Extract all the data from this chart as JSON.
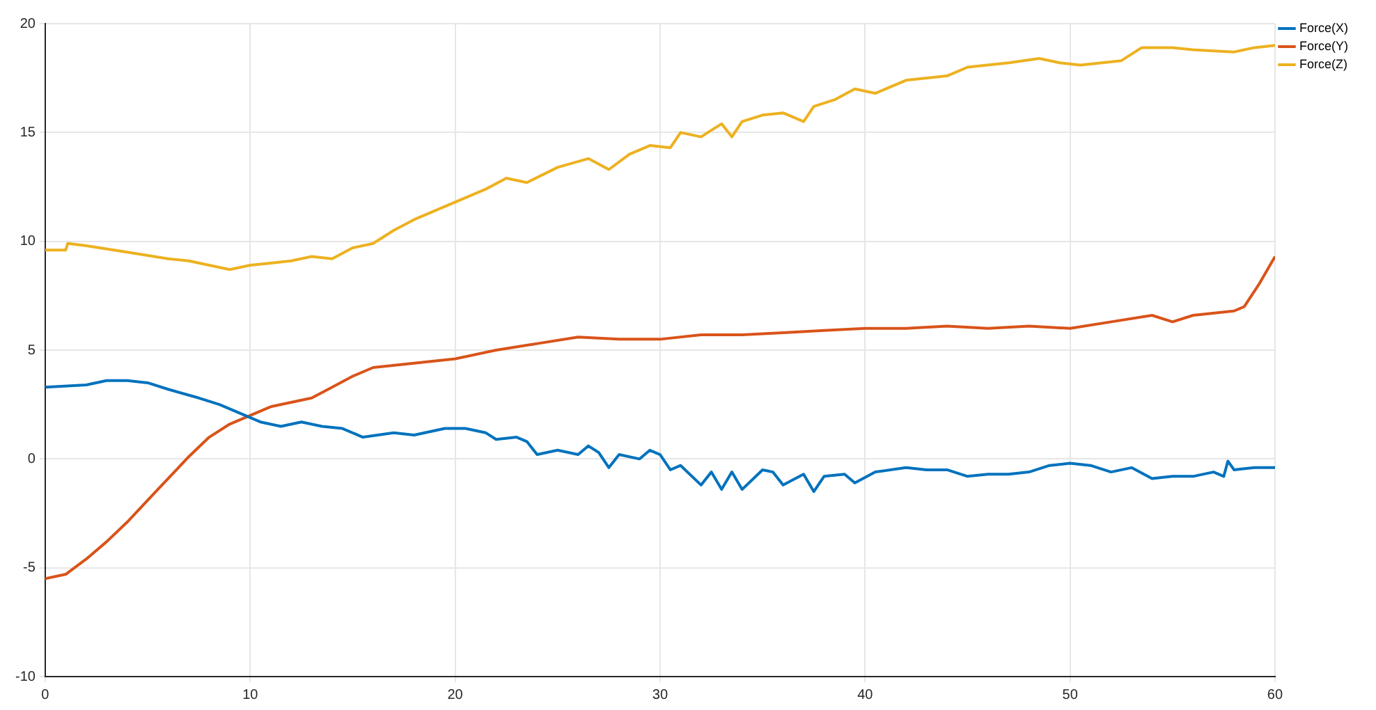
{
  "chart_data": {
    "type": "line",
    "xlim": [
      0,
      60
    ],
    "ylim": [
      -10,
      20
    ],
    "xticks": [
      0,
      10,
      20,
      30,
      40,
      50,
      60
    ],
    "yticks": [
      -10,
      -5,
      0,
      5,
      10,
      15,
      20
    ],
    "grid": true,
    "legend": "top right",
    "marker": "none",
    "line_style": "solid",
    "series": [
      {
        "name": "Force(X)",
        "color": "#0072bd",
        "x": [
          0,
          2,
          3,
          4,
          5,
          6,
          7.5,
          8.5,
          9.5,
          10.5,
          11.5,
          12.5,
          13.5,
          14.5,
          15.5,
          17,
          18,
          19.5,
          20.5,
          21.5,
          22,
          23,
          23.5,
          24,
          25,
          26,
          26.5,
          27,
          27.5,
          28,
          29,
          29.5,
          30,
          30.5,
          31,
          32,
          32.5,
          33,
          33.5,
          34,
          35,
          35.5,
          36,
          37,
          37.5,
          38,
          39,
          39.5,
          40.5,
          42,
          43,
          44,
          45,
          46,
          47,
          48,
          49,
          50,
          51,
          52,
          53,
          54,
          55,
          56,
          57,
          57.5,
          57.7,
          58,
          59,
          60
        ],
        "values": [
          3.3,
          3.4,
          3.6,
          3.6,
          3.5,
          3.2,
          2.8,
          2.5,
          2.1,
          1.7,
          1.5,
          1.7,
          1.5,
          1.4,
          1.0,
          1.2,
          1.1,
          1.4,
          1.4,
          1.2,
          0.9,
          1.0,
          0.8,
          0.2,
          0.4,
          0.2,
          0.6,
          0.3,
          -0.4,
          0.2,
          0.0,
          0.4,
          0.2,
          -0.5,
          -0.3,
          -1.2,
          -0.6,
          -1.4,
          -0.6,
          -1.4,
          -0.5,
          -0.6,
          -1.2,
          -0.7,
          -1.5,
          -0.8,
          -0.7,
          -1.1,
          -0.6,
          -0.4,
          -0.5,
          -0.5,
          -0.8,
          -0.7,
          -0.7,
          -0.6,
          -0.3,
          -0.2,
          -0.3,
          -0.6,
          -0.4,
          -0.9,
          -0.8,
          -0.8,
          -0.6,
          -0.8,
          -0.1,
          -0.5,
          -0.4,
          -0.4
        ]
      },
      {
        "name": "Force(Y)",
        "color": "#d95319",
        "x": [
          0,
          1,
          2,
          3,
          4,
          5,
          6,
          7,
          8,
          9,
          10,
          11,
          12,
          13,
          14,
          15,
          16,
          18,
          20,
          22,
          24,
          26,
          28,
          30,
          32,
          34,
          36,
          38,
          40,
          42,
          44,
          46,
          48,
          50,
          52,
          54,
          55,
          56,
          58,
          58.5,
          59.2,
          60
        ],
        "values": [
          -5.5,
          -5.3,
          -4.6,
          -3.8,
          -2.9,
          -1.9,
          -0.9,
          0.1,
          1.0,
          1.6,
          2.0,
          2.4,
          2.6,
          2.8,
          3.3,
          3.8,
          4.2,
          4.4,
          4.6,
          5.0,
          5.3,
          5.6,
          5.5,
          5.5,
          5.7,
          5.7,
          5.8,
          5.9,
          6.0,
          6.0,
          6.1,
          6.0,
          6.1,
          6.0,
          6.3,
          6.6,
          6.3,
          6.6,
          6.8,
          7.0,
          8.0,
          9.3
        ]
      },
      {
        "name": "Force(Z)",
        "color": "#edb120",
        "x": [
          0,
          1,
          1.1,
          2,
          4,
          6,
          7,
          8,
          9,
          10,
          11,
          12,
          13,
          14,
          15,
          16,
          17,
          18,
          19.5,
          20.5,
          21.5,
          22.5,
          23.5,
          25,
          26.5,
          27.5,
          28.5,
          29.5,
          30.5,
          31,
          32,
          33,
          33.5,
          34,
          35,
          36,
          37,
          37.5,
          38.5,
          39.5,
          40.5,
          42,
          44,
          45,
          47,
          48.5,
          49.5,
          50.5,
          52.5,
          53.5,
          55,
          56,
          58,
          59,
          60
        ],
        "values": [
          9.6,
          9.6,
          9.9,
          9.8,
          9.5,
          9.2,
          9.1,
          8.9,
          8.7,
          8.9,
          9.0,
          9.1,
          9.3,
          9.2,
          9.7,
          9.9,
          10.5,
          11.0,
          11.6,
          12.0,
          12.4,
          12.9,
          12.7,
          13.4,
          13.8,
          13.3,
          14.0,
          14.4,
          14.3,
          15.0,
          14.8,
          15.4,
          14.8,
          15.5,
          15.8,
          15.9,
          15.5,
          16.2,
          16.5,
          17.0,
          16.8,
          17.4,
          17.6,
          18.0,
          18.2,
          18.4,
          18.2,
          18.1,
          18.3,
          18.9,
          18.9,
          18.8,
          18.7,
          18.9,
          19.0
        ]
      }
    ]
  }
}
